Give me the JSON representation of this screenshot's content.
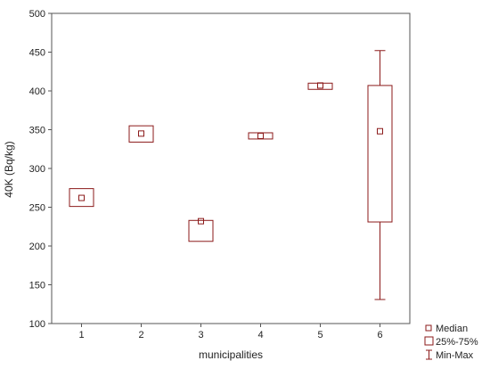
{
  "chart_data": {
    "type": "boxplot",
    "xlabel": "municipalities",
    "ylabel": "40K (Bq/kg)",
    "categories": [
      "1",
      "2",
      "3",
      "4",
      "5",
      "6"
    ],
    "ylim": [
      100,
      500
    ],
    "yticks": [
      100,
      150,
      200,
      250,
      300,
      350,
      400,
      450,
      500
    ],
    "series": [
      {
        "category": "1",
        "median": 262,
        "q1": 251,
        "q3": 274,
        "min": 251,
        "max": 274
      },
      {
        "category": "2",
        "median": 345,
        "q1": 334,
        "q3": 355,
        "min": 334,
        "max": 355
      },
      {
        "category": "3",
        "median": 232,
        "q1": 206,
        "q3": 233,
        "min": 206,
        "max": 233
      },
      {
        "category": "4",
        "median": 342,
        "q1": 338,
        "q3": 346,
        "min": 338,
        "max": 346
      },
      {
        "category": "5",
        "median": 407,
        "q1": 402,
        "q3": 410,
        "min": 402,
        "max": 410
      },
      {
        "category": "6",
        "median": 348,
        "q1": 231,
        "q3": 407,
        "min": 131,
        "max": 452
      }
    ],
    "legend": {
      "position": "bottom-right",
      "items": [
        "Median",
        "25%-75%",
        "Min-Max"
      ]
    },
    "grid": false,
    "colors": {
      "box": "#8b1a1a",
      "axis": "#555555"
    }
  }
}
